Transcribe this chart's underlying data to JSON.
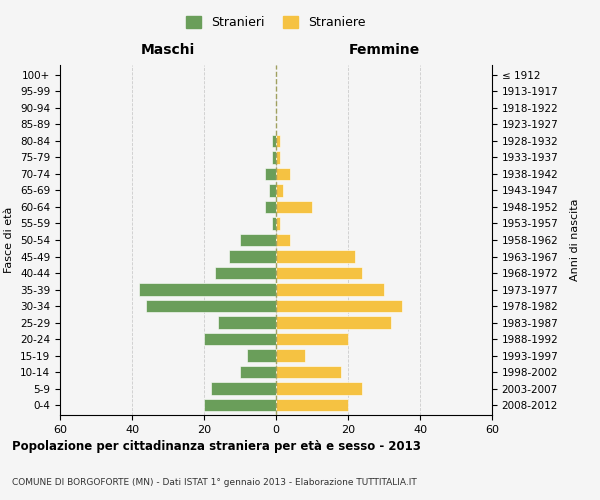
{
  "age_groups": [
    "0-4",
    "5-9",
    "10-14",
    "15-19",
    "20-24",
    "25-29",
    "30-34",
    "35-39",
    "40-44",
    "45-49",
    "50-54",
    "55-59",
    "60-64",
    "65-69",
    "70-74",
    "75-79",
    "80-84",
    "85-89",
    "90-94",
    "95-99",
    "100+"
  ],
  "birth_years": [
    "2008-2012",
    "2003-2007",
    "1998-2002",
    "1993-1997",
    "1988-1992",
    "1983-1987",
    "1978-1982",
    "1973-1977",
    "1968-1972",
    "1963-1967",
    "1958-1962",
    "1953-1957",
    "1948-1952",
    "1943-1947",
    "1938-1942",
    "1933-1937",
    "1928-1932",
    "1923-1927",
    "1918-1922",
    "1913-1917",
    "≤ 1912"
  ],
  "maschi": [
    20,
    18,
    10,
    8,
    20,
    16,
    36,
    38,
    17,
    13,
    10,
    1,
    3,
    2,
    3,
    1,
    1,
    0,
    0,
    0,
    0
  ],
  "femmine": [
    20,
    24,
    18,
    8,
    20,
    32,
    35,
    30,
    24,
    22,
    4,
    1,
    10,
    2,
    4,
    1,
    1,
    0,
    0,
    0,
    0
  ],
  "maschi_color": "#6a9e5a",
  "femmine_color": "#f5c242",
  "title": "Popolazione per cittadinanza straniera per età e sesso - 2013",
  "subtitle": "COMUNE DI BORGOFORTE (MN) - Dati ISTAT 1° gennaio 2013 - Elaborazione TUTTITALIA.IT",
  "ylabel_left": "Fasce di età",
  "ylabel_right": "Anni di nascita",
  "xlabel_left": "Maschi",
  "xlabel_right": "Femmine",
  "legend_stranieri": "Stranieri",
  "legend_straniere": "Straniere",
  "xlim": 60,
  "bg_color": "#f5f5f5",
  "grid_color": "#cccccc"
}
